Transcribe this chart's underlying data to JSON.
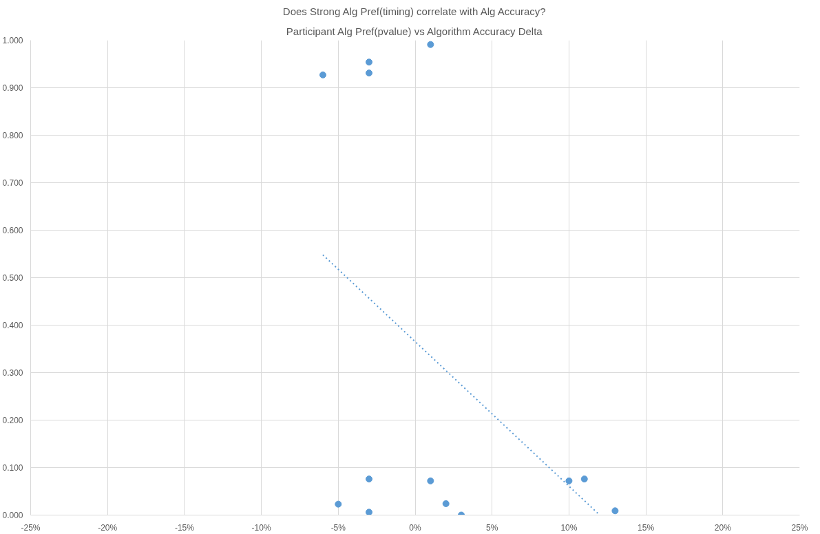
{
  "chart_data": {
    "type": "scatter",
    "title": "Does Strong Alg Pref(timing) correlate with Alg Accuracy?",
    "subtitle": "Participant Alg Pref(pvalue) vs Algorithm Accuracy Delta",
    "xlim": [
      -25,
      25
    ],
    "xticks": [
      {
        "value": -25,
        "label": "-25%"
      },
      {
        "value": -20,
        "label": "-20%"
      },
      {
        "value": -15,
        "label": "-15%"
      },
      {
        "value": -10,
        "label": "-10%"
      },
      {
        "value": -5,
        "label": "-5%"
      },
      {
        "value": 0,
        "label": "0%"
      },
      {
        "value": 5,
        "label": "5%"
      },
      {
        "value": 10,
        "label": "10%"
      },
      {
        "value": 15,
        "label": "15%"
      },
      {
        "value": 20,
        "label": "20%"
      },
      {
        "value": 25,
        "label": "25%"
      }
    ],
    "ylim": [
      0,
      1
    ],
    "yticks": [
      {
        "value": 0,
        "label": "0.000"
      },
      {
        "value": 0.1,
        "label": "0.100"
      },
      {
        "value": 0.2,
        "label": "0.200"
      },
      {
        "value": 0.3,
        "label": "0.300"
      },
      {
        "value": 0.4,
        "label": "0.400"
      },
      {
        "value": 0.5,
        "label": "0.500"
      },
      {
        "value": 0.6,
        "label": "0.600"
      },
      {
        "value": 0.7,
        "label": "0.700"
      },
      {
        "value": 0.8,
        "label": "0.800"
      },
      {
        "value": 0.9,
        "label": "0.900"
      },
      {
        "value": 1,
        "label": "1.000"
      }
    ],
    "grid": true,
    "series": [
      {
        "color": "#5b9bd5",
        "marker": "circle",
        "x": [
          -6,
          -3,
          -3,
          1,
          -5,
          -3,
          -3,
          1,
          2,
          3,
          10,
          11,
          13
        ],
        "values": [
          0.927,
          0.954,
          0.931,
          0.991,
          0.023,
          0.076,
          0.006,
          0.072,
          0.024,
          0.0,
          0.072,
          0.076,
          0.009
        ]
      },
      {
        "type": "line",
        "color": "#5b9bd5",
        "line_style": "dotted",
        "marker": "none",
        "x": [
          -6,
          12
        ],
        "values": [
          0.548,
          0.0
        ]
      }
    ]
  }
}
